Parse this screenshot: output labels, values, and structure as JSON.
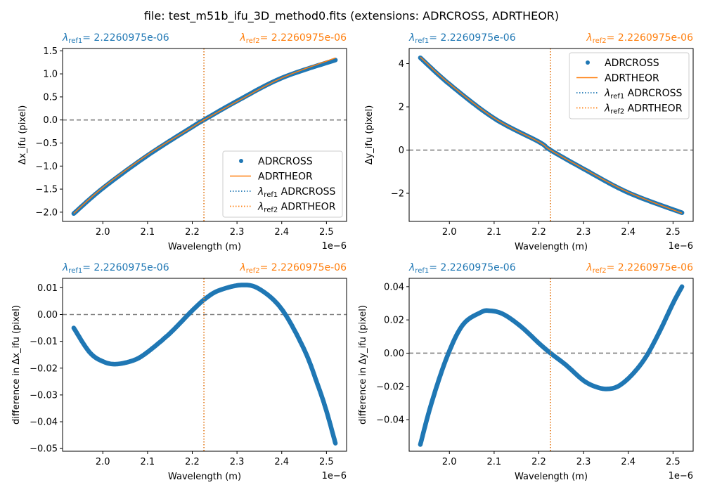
{
  "figure": {
    "suptitle": "file: test_m51b_ifu_3D_method0.fits (extensions: ADRCROSS, ADRTHEOR)"
  },
  "colors": {
    "blue": "#1f77b4",
    "orange": "#ff7f0e",
    "zero_line": "#808080",
    "text": "#000000"
  },
  "chart_data": [
    {
      "type": "scatter",
      "xlabel": "Wavelength (m)",
      "ylabel": "Δx_ifu (pixel)",
      "x_offset_label": "1e−6",
      "ref1_label": "λref1 = 2.2260975e-06",
      "ref2_label": "λref2 = 2.2260975e-06",
      "xlim": [
        1.91,
        2.545
      ],
      "ylim": [
        -2.2,
        1.55
      ],
      "xticks": [
        2.0,
        2.1,
        2.2,
        2.3,
        2.4,
        2.5
      ],
      "yticks": [
        -2.0,
        -1.5,
        -1.0,
        -0.5,
        0.0,
        0.5,
        1.0,
        1.5
      ],
      "ytick_labels": [
        "−2.0",
        "−1.5",
        "−1.0",
        "−0.5",
        "0.0",
        "0.5",
        "1.0",
        "1.5"
      ],
      "ref_wavelength": 2.2260975,
      "zero_line": 0,
      "legend": {
        "placement": "lower right",
        "entries": [
          {
            "label": "ADRCROSS",
            "style": "dot",
            "color": "blue"
          },
          {
            "label": "ADRTHEOR",
            "style": "line",
            "color": "orange"
          },
          {
            "label": "λref1 ADRCROSS",
            "style": "dotted",
            "color": "blue"
          },
          {
            "label": "λref2 ADRTHEOR",
            "style": "dotted",
            "color": "orange"
          }
        ]
      },
      "series": [
        {
          "name": "ADRCROSS",
          "color": "blue",
          "x": [
            1.935,
            2.0,
            2.1,
            2.2,
            2.226,
            2.3,
            2.4,
            2.52
          ],
          "y": [
            -2.03,
            -1.48,
            -0.77,
            -0.15,
            0.0,
            0.41,
            0.91,
            1.3
          ]
        },
        {
          "name": "ADRTHEOR",
          "color": "orange",
          "x": [
            1.935,
            2.0,
            2.1,
            2.2,
            2.226,
            2.3,
            2.4,
            2.52
          ],
          "y": [
            -2.025,
            -1.465,
            -0.755,
            -0.155,
            0.0,
            0.4,
            0.91,
            1.345
          ]
        }
      ]
    },
    {
      "type": "scatter",
      "xlabel": "Wavelength (m)",
      "ylabel": "Δy_ifu (pixel)",
      "x_offset_label": "1e−6",
      "ref1_label": "λref1 = 2.2260975e-06",
      "ref2_label": "λref2 = 2.2260975e-06",
      "xlim": [
        1.91,
        2.545
      ],
      "ylim": [
        -3.3,
        4.7
      ],
      "xticks": [
        2.0,
        2.1,
        2.2,
        2.3,
        2.4,
        2.5
      ],
      "yticks": [
        -2,
        0,
        2,
        4
      ],
      "ytick_labels": [
        "−2",
        "0",
        "2",
        "4"
      ],
      "ref_wavelength": 2.2260975,
      "zero_line": 0,
      "legend": {
        "placement": "upper right",
        "entries": [
          {
            "label": "ADRCROSS",
            "style": "dot",
            "color": "blue"
          },
          {
            "label": "ADRTHEOR",
            "style": "line",
            "color": "orange"
          },
          {
            "label": "λref1 ADRCROSS",
            "style": "dotted",
            "color": "blue"
          },
          {
            "label": "λref2 ADRTHEOR",
            "style": "dotted",
            "color": "orange"
          }
        ]
      },
      "series": [
        {
          "name": "ADRCROSS",
          "color": "blue",
          "x": [
            1.935,
            2.0,
            2.1,
            2.2,
            2.226,
            2.3,
            2.4,
            2.52
          ],
          "y": [
            4.27,
            3.05,
            1.47,
            0.38,
            0.0,
            -0.87,
            -1.97,
            -2.9
          ]
        },
        {
          "name": "ADRTHEOR",
          "color": "orange",
          "x": [
            1.935,
            2.0,
            2.1,
            2.2,
            2.226,
            2.3,
            2.4,
            2.52
          ],
          "y": [
            4.3,
            3.07,
            1.48,
            0.38,
            0.0,
            -0.86,
            -1.95,
            -2.92
          ]
        }
      ]
    },
    {
      "type": "scatter",
      "xlabel": "Wavelength (m)",
      "ylabel": "difference in Δx_ifu (pixel)",
      "x_offset_label": "1e−6",
      "ref1_label": "λref1 = 2.2260975e-06",
      "ref2_label": "λref2 = 2.2260975e-06",
      "xlim": [
        1.91,
        2.545
      ],
      "ylim": [
        -0.051,
        0.0135
      ],
      "xticks": [
        2.0,
        2.1,
        2.2,
        2.3,
        2.4,
        2.5
      ],
      "yticks": [
        -0.05,
        -0.04,
        -0.03,
        -0.02,
        -0.01,
        0.0,
        0.01
      ],
      "ytick_labels": [
        "−0.05",
        "−0.04",
        "−0.03",
        "−0.02",
        "−0.01",
        "0.00",
        "0.01"
      ],
      "ref_wavelength": 2.2260975,
      "zero_line": 0,
      "series": [
        {
          "name": "difference",
          "color": "blue",
          "x": [
            1.935,
            1.97,
            2.0,
            2.03,
            2.07,
            2.1,
            2.15,
            2.2,
            2.23,
            2.26,
            2.31,
            2.35,
            2.4,
            2.45,
            2.48,
            2.5,
            2.52
          ],
          "y": [
            -0.005,
            -0.014,
            -0.0175,
            -0.0185,
            -0.017,
            -0.014,
            -0.007,
            0.0015,
            0.006,
            0.009,
            0.011,
            0.0095,
            0.002,
            -0.013,
            -0.026,
            -0.036,
            -0.048
          ]
        }
      ]
    },
    {
      "type": "scatter",
      "xlabel": "Wavelength (m)",
      "ylabel": "difference in Δy_ifu (pixel)",
      "x_offset_label": "1e−6",
      "ref1_label": "λref1 = 2.2260975e-06",
      "ref2_label": "λref2 = 2.2260975e-06",
      "xlim": [
        1.91,
        2.545
      ],
      "ylim": [
        -0.059,
        0.045
      ],
      "xticks": [
        2.0,
        2.1,
        2.2,
        2.3,
        2.4,
        2.5
      ],
      "yticks": [
        -0.04,
        -0.02,
        0.0,
        0.02,
        0.04
      ],
      "ytick_labels": [
        "−0.04",
        "−0.02",
        "0.00",
        "0.02",
        "0.04"
      ],
      "ref_wavelength": 2.2260975,
      "zero_line": 0,
      "series": [
        {
          "name": "difference",
          "color": "blue",
          "x": [
            1.935,
            1.96,
            1.995,
            2.03,
            2.07,
            2.09,
            2.12,
            2.16,
            2.2,
            2.226,
            2.26,
            2.3,
            2.33,
            2.355,
            2.38,
            2.41,
            2.44,
            2.47,
            2.5,
            2.52
          ],
          "y": [
            -0.055,
            -0.03,
            -0.002,
            0.017,
            0.0245,
            0.0255,
            0.0235,
            0.016,
            0.006,
            0.0,
            -0.007,
            -0.0165,
            -0.0205,
            -0.0215,
            -0.0195,
            -0.0125,
            -0.002,
            0.013,
            0.03,
            0.04
          ]
        }
      ]
    }
  ]
}
